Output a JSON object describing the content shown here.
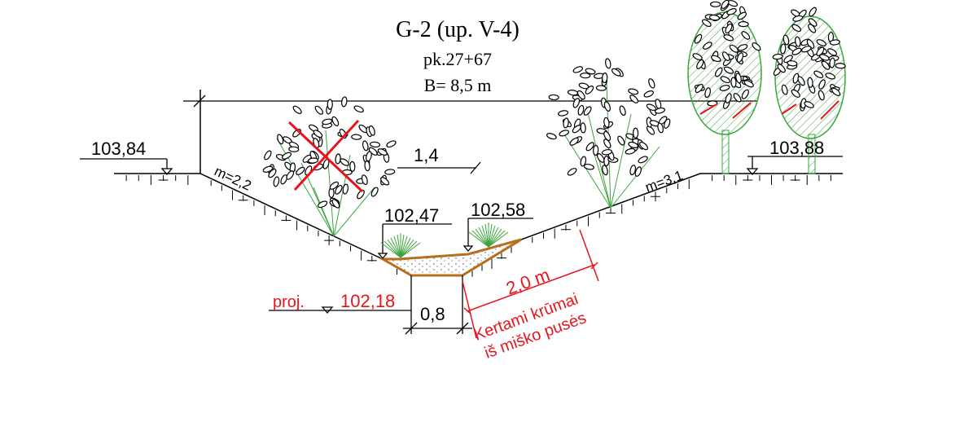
{
  "header": {
    "title": "G-2 (up. V-4)",
    "station": "pk.27+67",
    "width_label": "B= 8,5 m"
  },
  "elevations": {
    "left_top": "103,84",
    "right_top": "103,88",
    "bottom_left": "102,47",
    "bottom_right": "102,58",
    "design_prefix": "proj.",
    "design": "102,18"
  },
  "slopes": {
    "left": "m=2,2",
    "right": "m=3,1"
  },
  "dimensions": {
    "depth": "1,4",
    "bottom_width": "0,8",
    "clearing_width": "2,0 m"
  },
  "note": {
    "line1": "Kertami krūmai",
    "line2": "iš miško pusės"
  },
  "colors": {
    "ink": "#000000",
    "annotation": "#e8141b",
    "channel_outline": "#b86e1e",
    "vegetation": "#3aa53a",
    "tree_fill": "#cfe9c4"
  }
}
